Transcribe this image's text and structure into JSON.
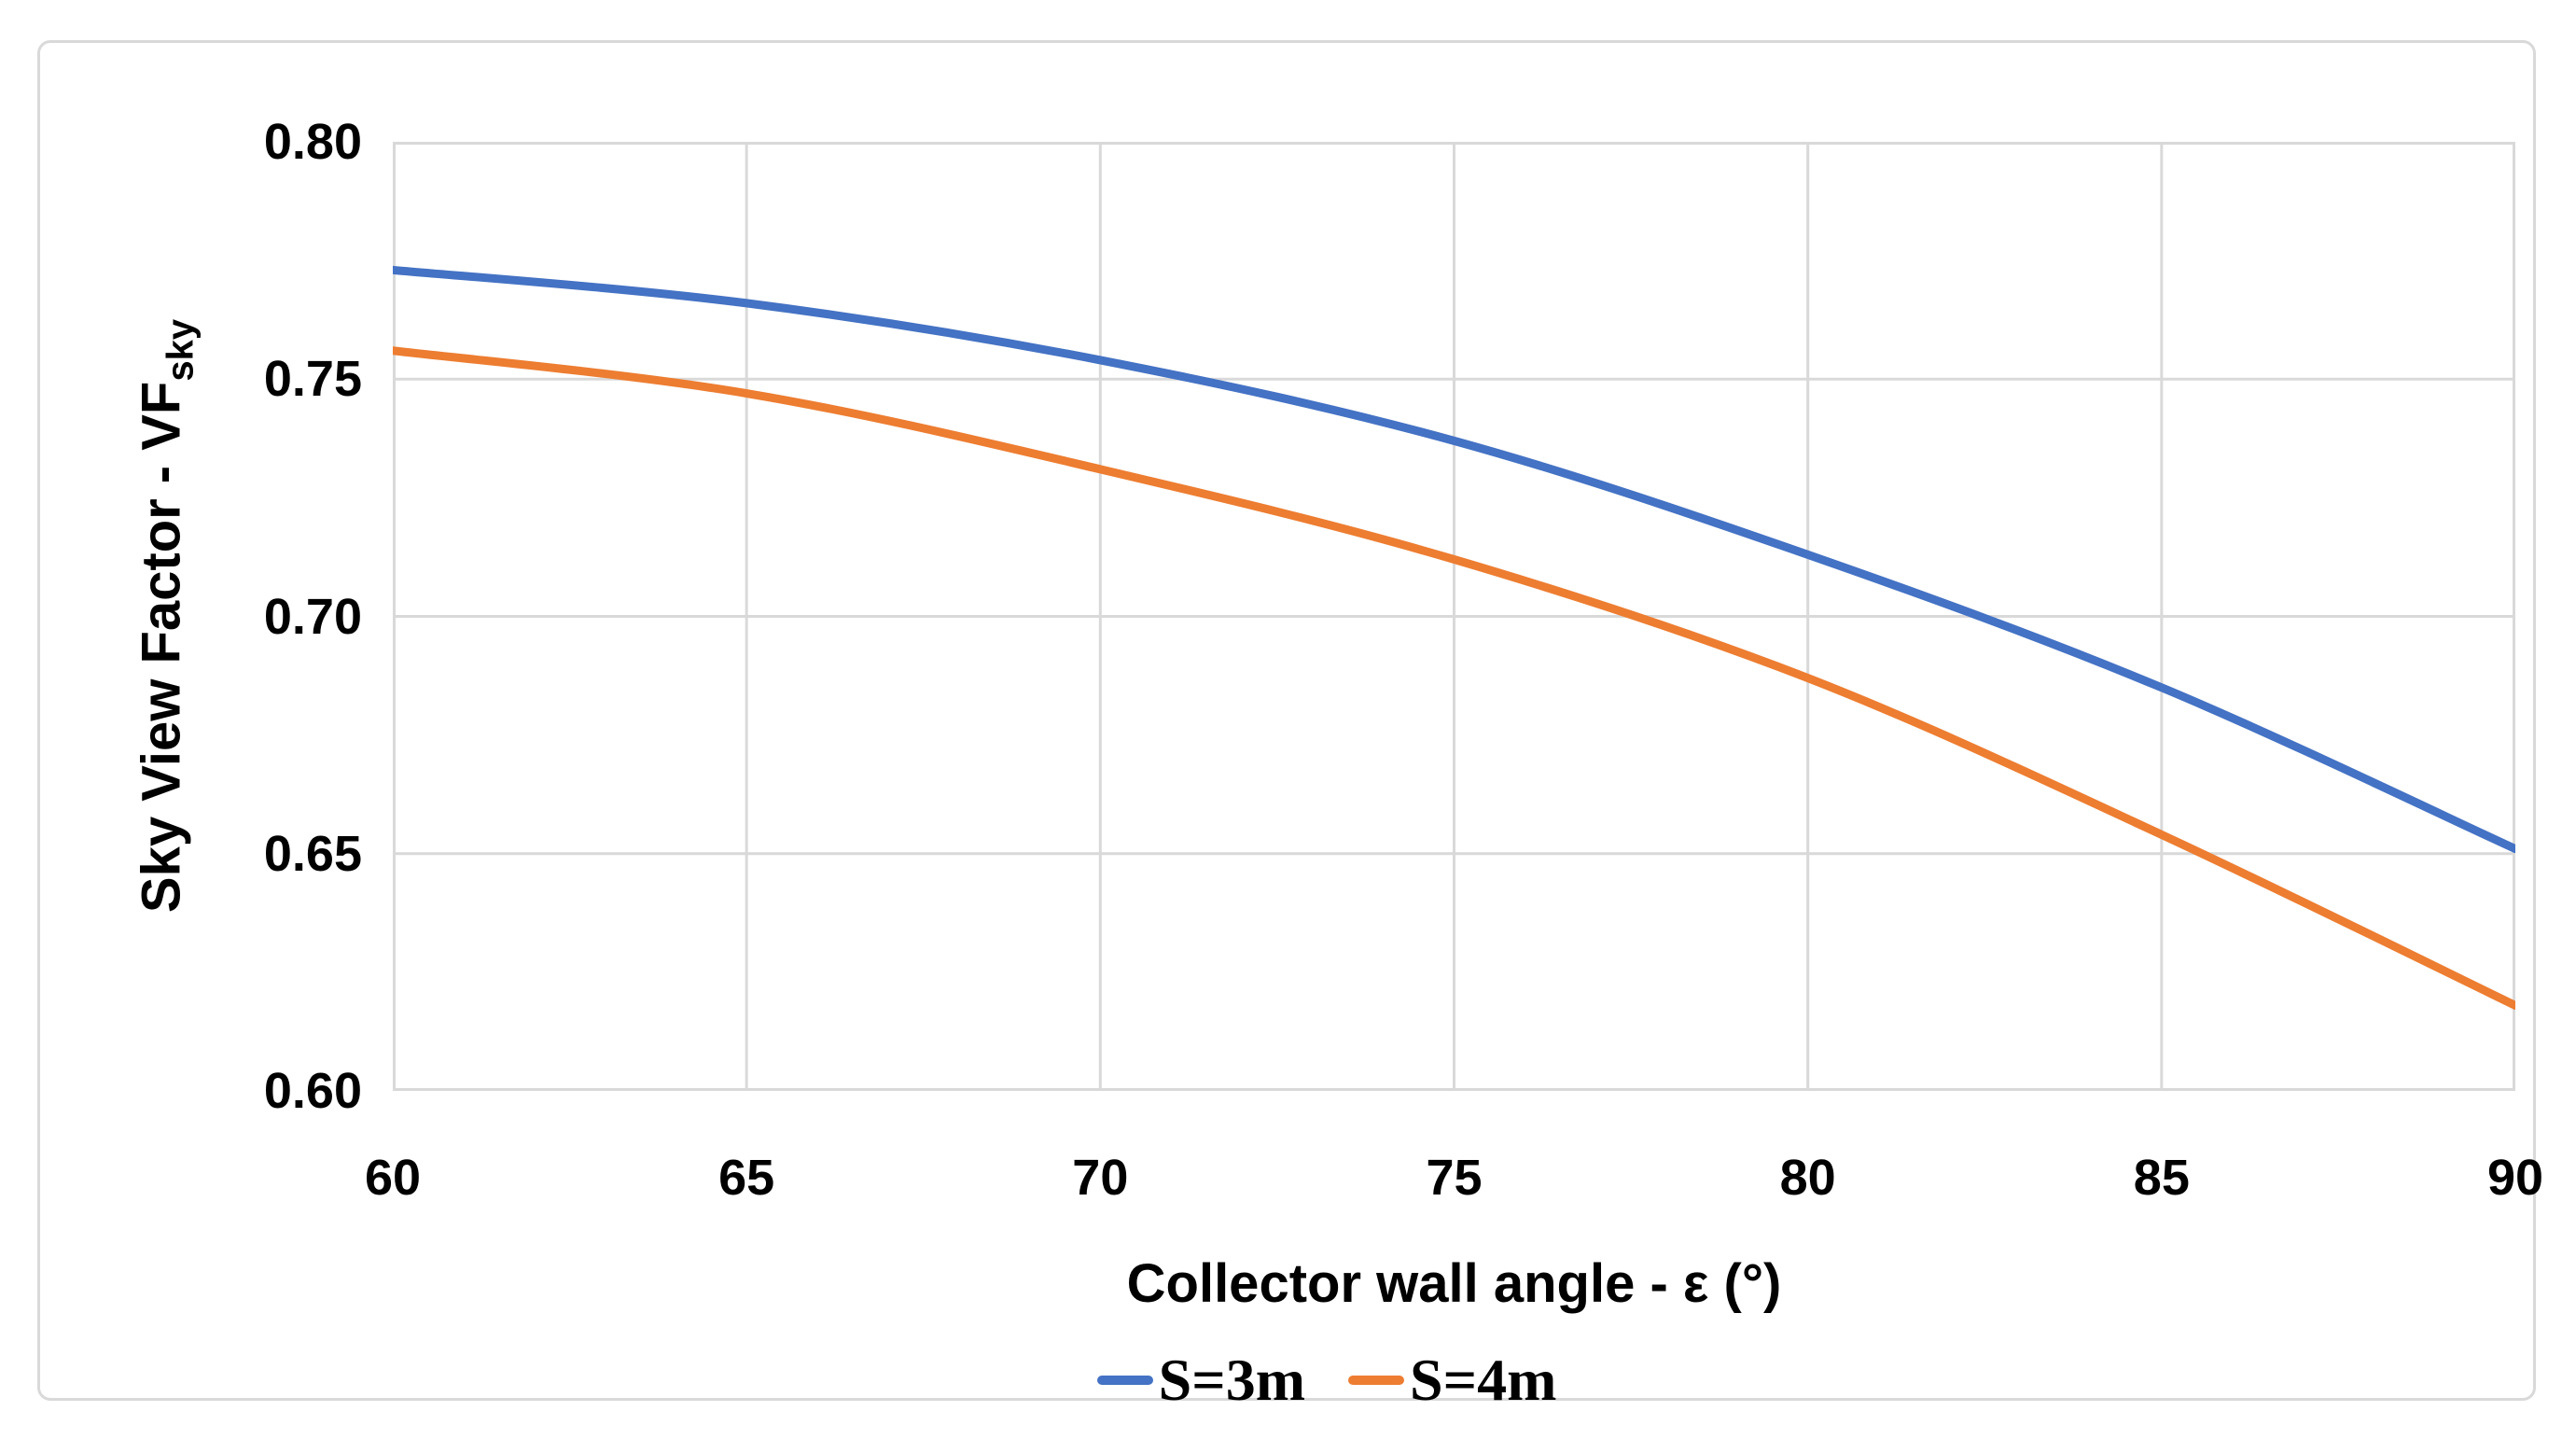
{
  "chart_data": {
    "type": "line",
    "title": "",
    "xlabel": "Collector wall angle - ε (°)",
    "ylabel": "Sky View Factor - VF",
    "ylabel_sub": "sky",
    "x": [
      60,
      65,
      70,
      75,
      80,
      85,
      90
    ],
    "series": [
      {
        "name": "S=3m",
        "color": "#4472C4",
        "values": [
          0.773,
          0.766,
          0.754,
          0.737,
          0.713,
          0.685,
          0.651
        ]
      },
      {
        "name": "S=4m",
        "color": "#ED7D31",
        "values": [
          0.756,
          0.747,
          0.731,
          0.712,
          0.687,
          0.654,
          0.618
        ]
      }
    ],
    "xlim": [
      60,
      90
    ],
    "ylim": [
      0.6,
      0.8
    ],
    "xticks": [
      "60",
      "65",
      "70",
      "75",
      "80",
      "85",
      "90"
    ],
    "yticks": [
      "0.80",
      "0.75",
      "0.70",
      "0.65",
      "0.60"
    ],
    "grid": true,
    "legend_position": "bottom",
    "colors": {
      "gridline": "#D9D9D9",
      "plot_border": "#D9D9D9",
      "frame_border": "#D9D9D9",
      "text": "#000000"
    },
    "line_width": 9
  }
}
